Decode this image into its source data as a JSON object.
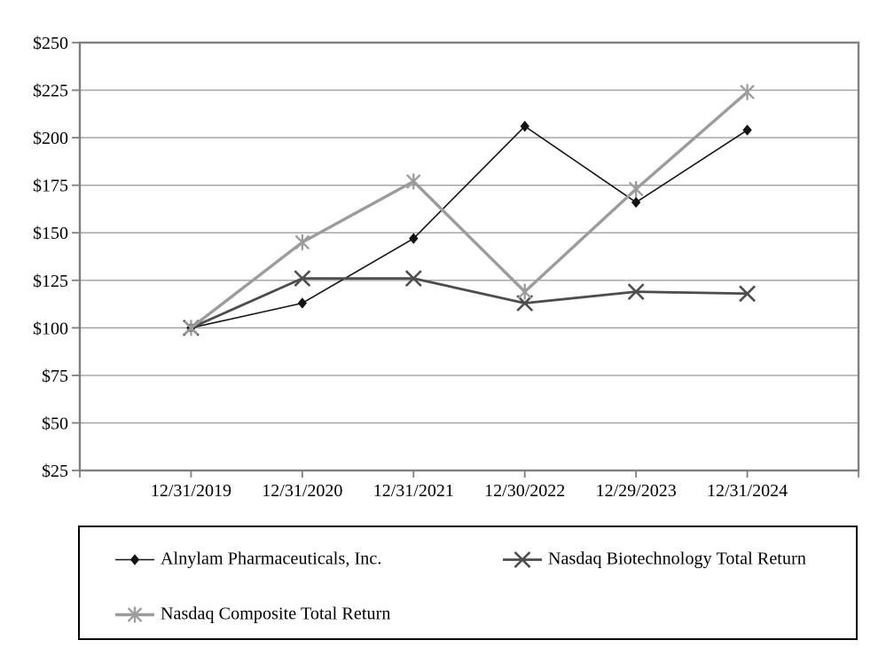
{
  "chart_data": {
    "type": "line",
    "title": "",
    "x_tick_labels": [
      "12/31/2019",
      "12/31/2020",
      "12/31/2021",
      "12/30/2022",
      "12/29/2023",
      "12/31/2024"
    ],
    "y_tick_labels": [
      "$25",
      "$50",
      "$75",
      "$100",
      "$125",
      "$150",
      "$175",
      "$200",
      "$225",
      "$250"
    ],
    "y_axis": {
      "min": 25,
      "max": 250,
      "step": 25,
      "prefix": "$"
    },
    "ylim": [
      25,
      250
    ],
    "grid": true,
    "legend_position": "bottom-box",
    "series": [
      {
        "name": "Alnylam Pharmaceuticals, Inc.",
        "marker": "diamond",
        "color": "#141414",
        "line_width": 1.6,
        "values": [
          100,
          113,
          147,
          206,
          166,
          204
        ]
      },
      {
        "name": "Nasdaq Biotechnology Total Return",
        "marker": "x",
        "color": "#4d4d4d",
        "line_width": 2.8,
        "values": [
          100,
          126,
          126,
          113,
          119,
          118
        ]
      },
      {
        "name": "Nasdaq Composite Total Return",
        "marker": "asterisk",
        "color": "#9c9c9c",
        "line_width": 3.4,
        "values": [
          100,
          145,
          177,
          119,
          173,
          224
        ]
      }
    ],
    "colors": {
      "gridline": "#9f9f9f",
      "frame": "#7f7f7f",
      "text": "#000000",
      "legend_border": "#000000"
    }
  },
  "legend": {
    "rows": [
      [
        0,
        1
      ],
      [
        2
      ]
    ]
  }
}
